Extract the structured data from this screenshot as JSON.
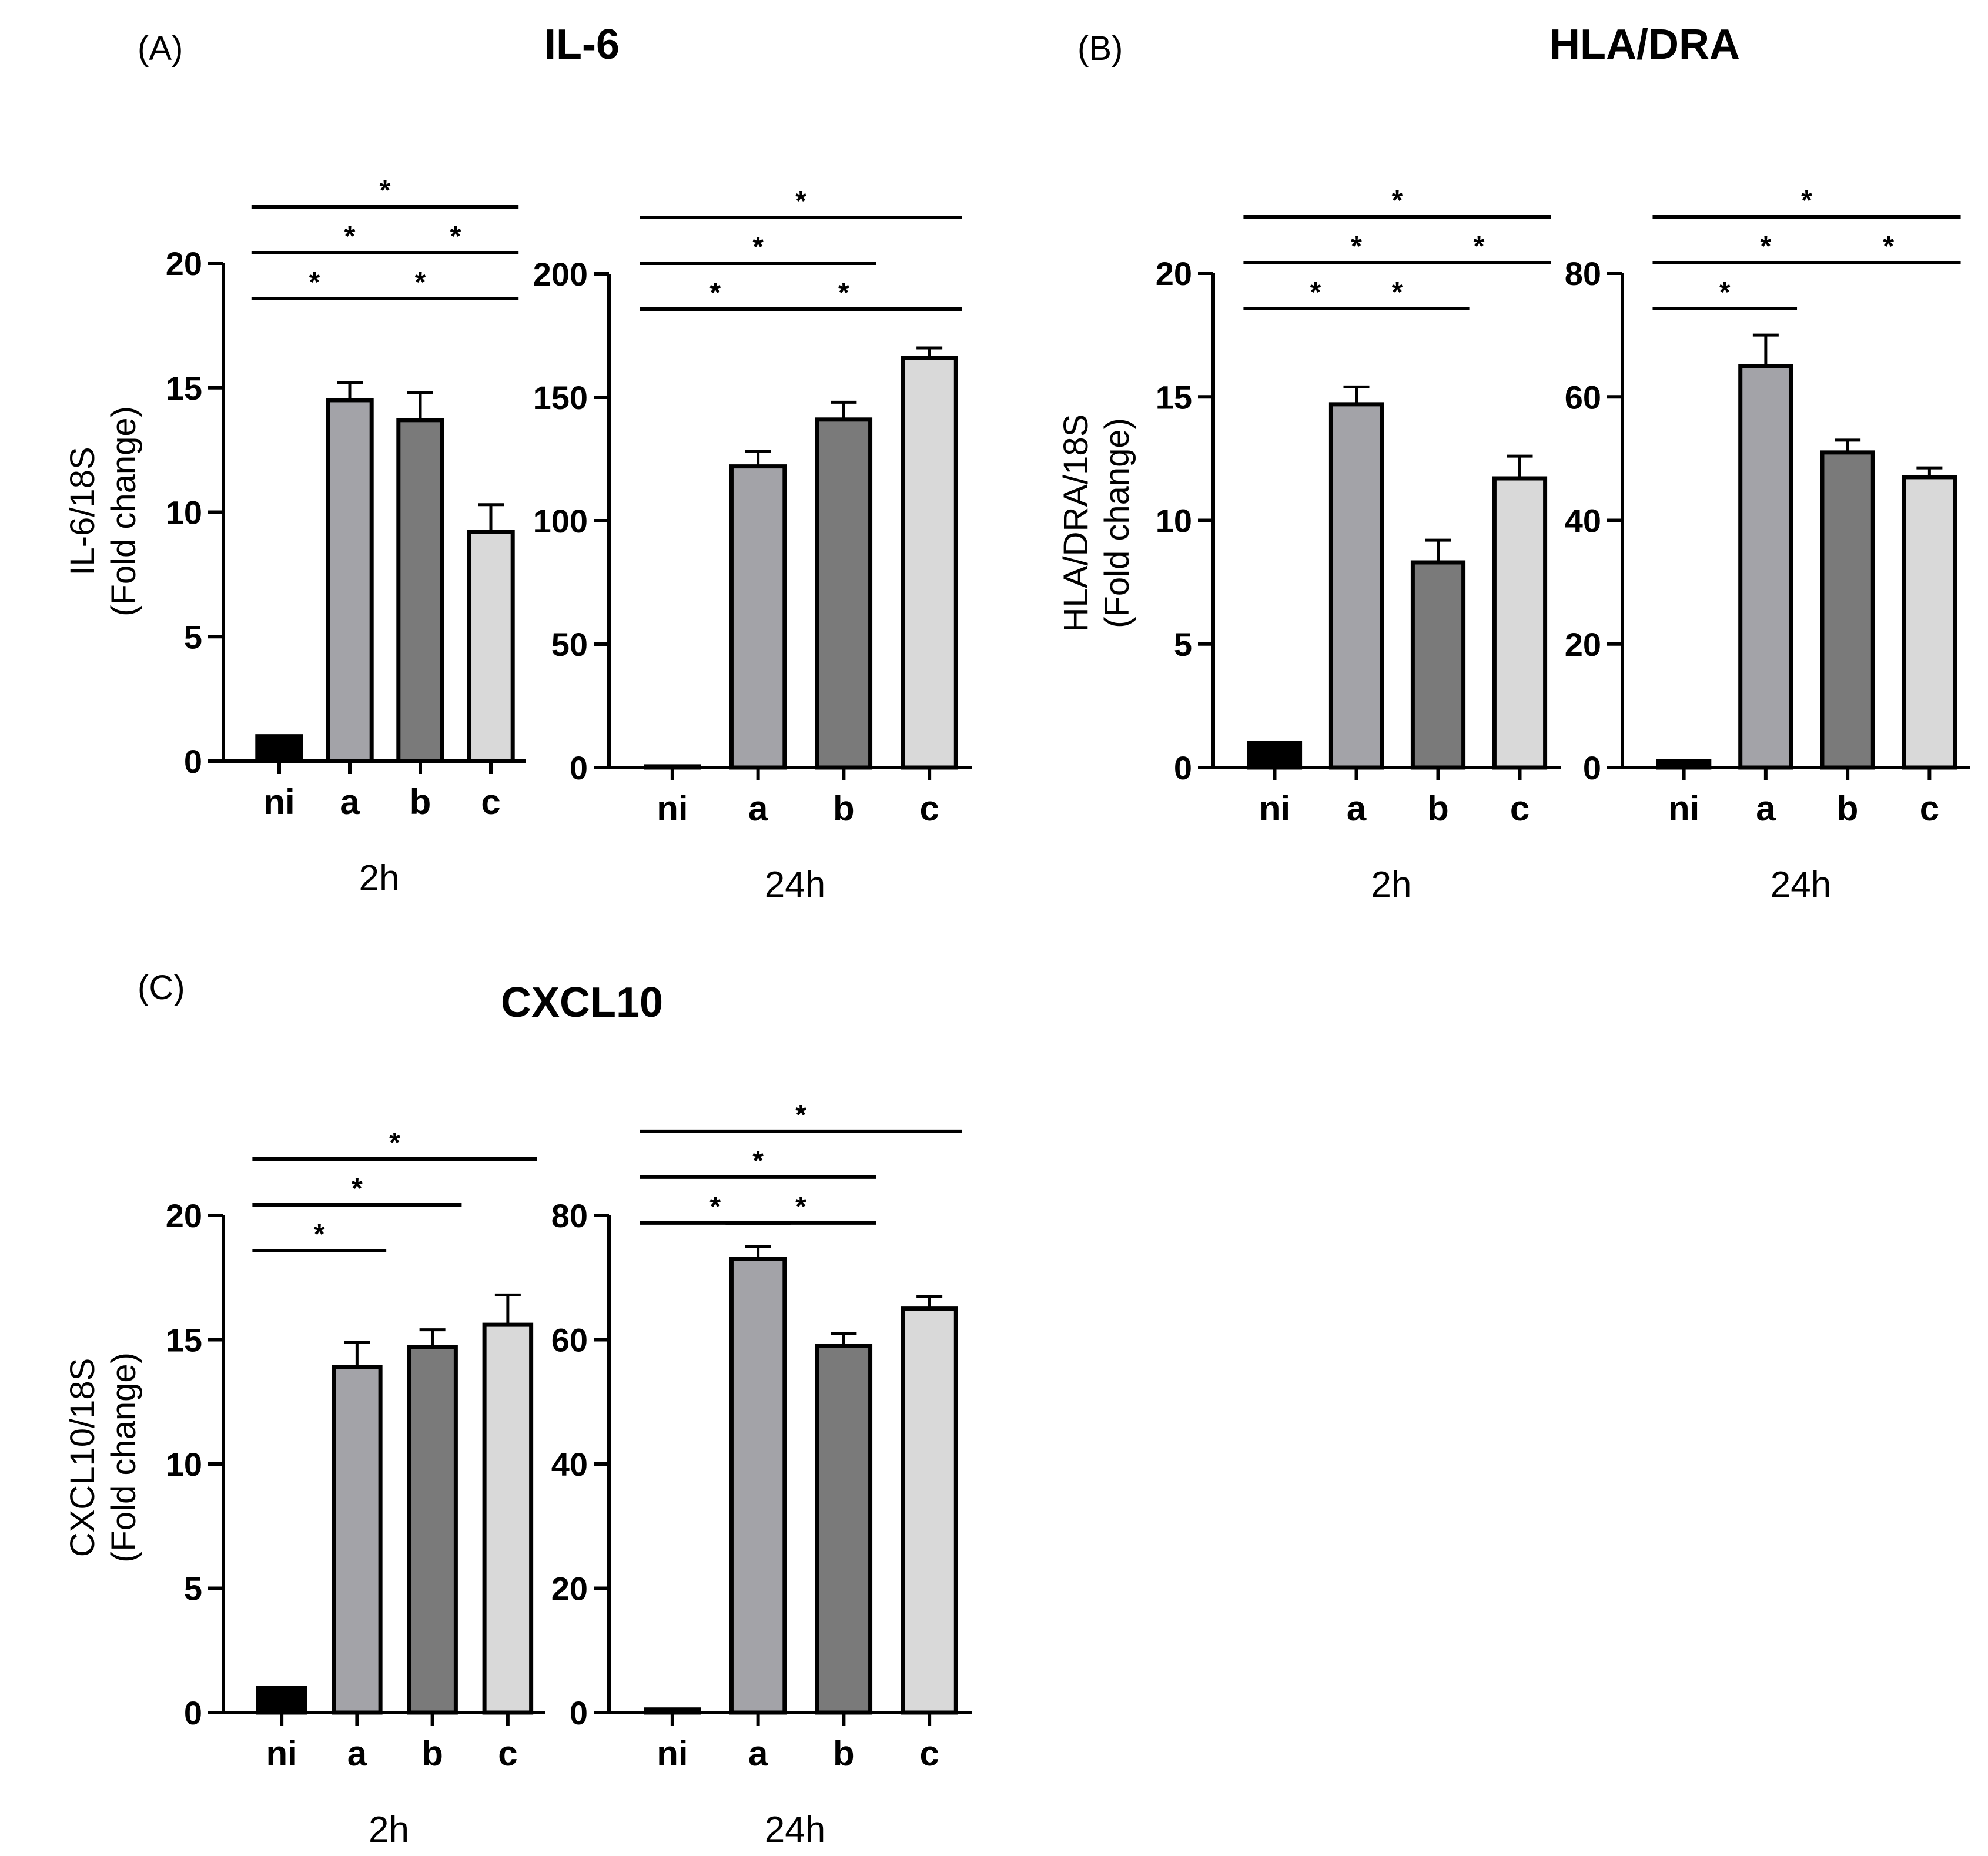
{
  "figure": {
    "panels": [
      {
        "id": "A",
        "label": "(A)",
        "title": "IL-6",
        "ylabel_line1": "IL-6/18S",
        "ylabel_line2": "(Fold change)"
      },
      {
        "id": "B",
        "label": "(B)",
        "title": "HLA/DRA",
        "ylabel_line1": "HLA/DRA/18S",
        "ylabel_line2": "(Fold change)"
      },
      {
        "id": "C",
        "label": "(C)",
        "title": "CXCL10",
        "ylabel_line1": "CXCL10/18S",
        "ylabel_line2": "(Fold change)"
      }
    ]
  },
  "colors": {
    "ni": "#000000",
    "a": "#a3a3a8",
    "b": "#7a7a7a",
    "c": "#d9d9d9",
    "axis": "#000000"
  },
  "chart_data": [
    {
      "panel": "A",
      "type": "bar",
      "xlabel": "2h",
      "categories": [
        "ni",
        "a",
        "b",
        "c"
      ],
      "values": [
        1,
        14.5,
        13.7,
        9.2
      ],
      "errors": [
        0,
        0.7,
        1.1,
        1.1
      ],
      "ylim": [
        0,
        20
      ],
      "yticks": [
        0,
        5,
        10,
        15,
        20
      ],
      "tick_labels": [
        "0",
        "5",
        "10",
        "15",
        "20"
      ],
      "significance": [
        {
          "from": 0,
          "to": 1,
          "label": "*"
        },
        {
          "from": 0,
          "to": 2,
          "label": "*"
        },
        {
          "from": 0,
          "to": 3,
          "label": "*"
        },
        {
          "from": 2,
          "to": 3,
          "label": "*"
        },
        {
          "from": 1,
          "to": 3,
          "label": "*"
        }
      ]
    },
    {
      "panel": "A",
      "type": "bar",
      "xlabel": "24h",
      "categories": [
        "ni",
        "a",
        "b",
        "c"
      ],
      "values": [
        0.5,
        122,
        141,
        166
      ],
      "errors": [
        0,
        6,
        7,
        4
      ],
      "ylim": [
        0,
        200
      ],
      "yticks": [
        0,
        50,
        100,
        150,
        200
      ],
      "tick_labels": [
        "0",
        "50",
        "100",
        "150",
        "200"
      ],
      "significance": [
        {
          "from": 0,
          "to": 1,
          "label": "*"
        },
        {
          "from": 0,
          "to": 2,
          "label": "*"
        },
        {
          "from": 0,
          "to": 3,
          "label": "*"
        },
        {
          "from": 1,
          "to": 3,
          "label": "*"
        }
      ]
    },
    {
      "panel": "B",
      "type": "bar",
      "xlabel": "2h",
      "categories": [
        "ni",
        "a",
        "b",
        "c"
      ],
      "values": [
        1,
        14.7,
        8.3,
        11.7
      ],
      "errors": [
        0,
        0.7,
        0.9,
        0.9
      ],
      "ylim": [
        0,
        20
      ],
      "yticks": [
        0,
        5,
        10,
        15,
        20
      ],
      "tick_labels": [
        "0",
        "5",
        "10",
        "15",
        "20"
      ],
      "significance": [
        {
          "from": 0,
          "to": 1,
          "label": "*"
        },
        {
          "from": 0,
          "to": 2,
          "label": "*"
        },
        {
          "from": 0,
          "to": 3,
          "label": "*"
        },
        {
          "from": 1,
          "to": 2,
          "label": "*"
        },
        {
          "from": 2,
          "to": 3,
          "label": "*"
        }
      ]
    },
    {
      "panel": "B",
      "type": "bar",
      "xlabel": "24h",
      "categories": [
        "ni",
        "a",
        "b",
        "c"
      ],
      "values": [
        1,
        65,
        51,
        47
      ],
      "errors": [
        0,
        5,
        2,
        1.5
      ],
      "ylim": [
        0,
        80
      ],
      "yticks": [
        0,
        20,
        40,
        60,
        80
      ],
      "tick_labels": [
        "0",
        "20",
        "40",
        "60",
        "80"
      ],
      "significance": [
        {
          "from": 0,
          "to": 1,
          "label": "*"
        },
        {
          "from": 0,
          "to": 2,
          "label": "*"
        },
        {
          "from": 0,
          "to": 3,
          "label": "*"
        },
        {
          "from": 2,
          "to": 3,
          "label": "*"
        }
      ]
    },
    {
      "panel": "C",
      "type": "bar",
      "xlabel": "2h",
      "categories": [
        "ni",
        "a",
        "b",
        "c"
      ],
      "values": [
        1,
        13.9,
        14.7,
        15.6
      ],
      "errors": [
        0,
        1.0,
        0.7,
        1.2
      ],
      "ylim": [
        0,
        20
      ],
      "yticks": [
        0,
        5,
        10,
        15,
        20
      ],
      "tick_labels": [
        "0",
        "5",
        "10",
        "15",
        "20"
      ],
      "significance": [
        {
          "from": 0,
          "to": 1,
          "label": "*"
        },
        {
          "from": 0,
          "to": 2,
          "label": "*"
        },
        {
          "from": 0,
          "to": 3,
          "label": "*"
        }
      ]
    },
    {
      "panel": "C",
      "type": "bar",
      "xlabel": "24h",
      "categories": [
        "ni",
        "a",
        "b",
        "c"
      ],
      "values": [
        0.5,
        73,
        59,
        65
      ],
      "errors": [
        0,
        2,
        2,
        2
      ],
      "ylim": [
        0,
        80
      ],
      "yticks": [
        0,
        20,
        40,
        60,
        80
      ],
      "tick_labels": [
        "0",
        "20",
        "40",
        "60",
        "80"
      ],
      "significance": [
        {
          "from": 0,
          "to": 1,
          "label": "*"
        },
        {
          "from": 1,
          "to": 2,
          "label": "*"
        },
        {
          "from": 0,
          "to": 2,
          "label": "*"
        },
        {
          "from": 0,
          "to": 3,
          "label": "*"
        }
      ]
    }
  ]
}
